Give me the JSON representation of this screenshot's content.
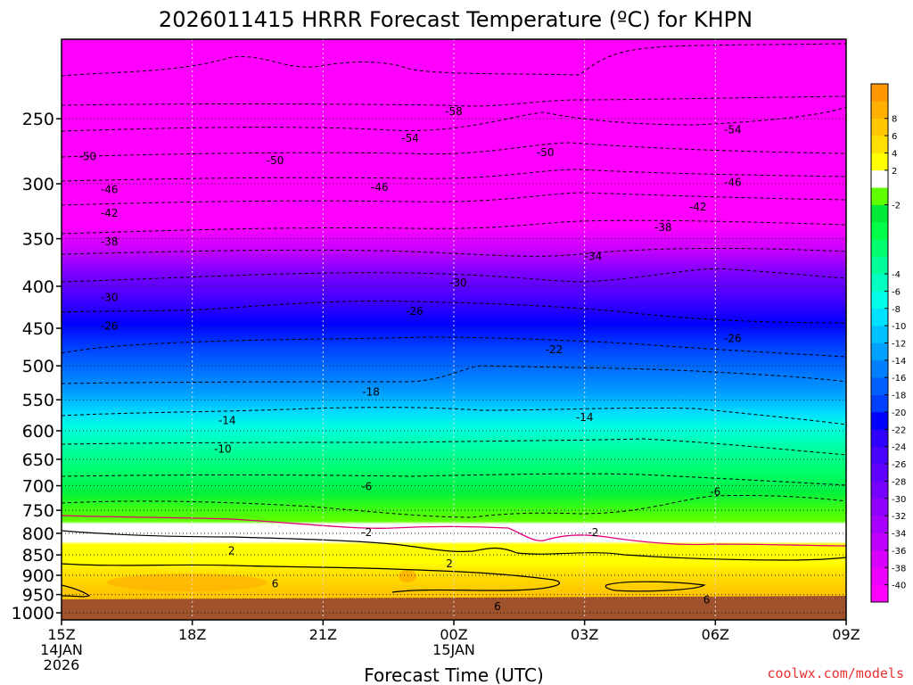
{
  "chart_data": {
    "type": "heatmap",
    "title": "2026011415 HRRR Forecast Temperature (ºC) for KHPN",
    "xlabel": "Forecast Time (UTC)",
    "ylabel": "",
    "credit": "coolwx.com/models",
    "x_ticks": [
      {
        "hour": 0,
        "lines": [
          "15Z",
          "14JAN",
          "2026"
        ]
      },
      {
        "hour": 3,
        "lines": [
          "18Z"
        ]
      },
      {
        "hour": 6,
        "lines": [
          "21Z"
        ]
      },
      {
        "hour": 9,
        "lines": [
          "00Z",
          "15JAN"
        ]
      },
      {
        "hour": 12,
        "lines": [
          "03Z"
        ]
      },
      {
        "hour": 15,
        "lines": [
          "06Z"
        ]
      },
      {
        "hour": 18,
        "lines": [
          "09Z"
        ]
      }
    ],
    "xlim_hours": [
      0,
      18
    ],
    "y_ticks": [
      250,
      300,
      350,
      400,
      450,
      500,
      550,
      600,
      650,
      700,
      750,
      800,
      850,
      900,
      950,
      1000
    ],
    "ylim_hpa": [
      200,
      1020
    ],
    "y_scale": "log (pressure)",
    "ground_color": "#a0522d",
    "contour_labels": [
      {
        "t": 0.6,
        "p": 278,
        "text": "-50"
      },
      {
        "t": 1.1,
        "p": 305,
        "text": "-46"
      },
      {
        "t": 1.1,
        "p": 326,
        "text": "-42"
      },
      {
        "t": 1.1,
        "p": 353,
        "text": "-38"
      },
      {
        "t": 1.1,
        "p": 413,
        "text": "-30"
      },
      {
        "t": 1.1,
        "p": 447,
        "text": "-26"
      },
      {
        "t": 4.9,
        "p": 281,
        "text": "-50"
      },
      {
        "t": 7.3,
        "p": 303,
        "text": "-46"
      },
      {
        "t": 9.0,
        "p": 245,
        "text": "-58"
      },
      {
        "t": 8.0,
        "p": 264,
        "text": "-54"
      },
      {
        "t": 11.1,
        "p": 275,
        "text": "-50"
      },
      {
        "t": 12.2,
        "p": 368,
        "text": "-34"
      },
      {
        "t": 13.8,
        "p": 339,
        "text": "-38"
      },
      {
        "t": 15.4,
        "p": 258,
        "text": "-54"
      },
      {
        "t": 15.4,
        "p": 299,
        "text": "-46"
      },
      {
        "t": 14.6,
        "p": 320,
        "text": "-42"
      },
      {
        "t": 9.1,
        "p": 396,
        "text": "-30"
      },
      {
        "t": 8.1,
        "p": 429,
        "text": "-26"
      },
      {
        "t": 11.3,
        "p": 478,
        "text": "-22"
      },
      {
        "t": 15.4,
        "p": 463,
        "text": "-26"
      },
      {
        "t": 7.1,
        "p": 538,
        "text": "-18"
      },
      {
        "t": 3.8,
        "p": 583,
        "text": "-14"
      },
      {
        "t": 12.0,
        "p": 578,
        "text": "-14"
      },
      {
        "t": 3.7,
        "p": 632,
        "text": "-10"
      },
      {
        "t": 7.0,
        "p": 702,
        "text": "-6"
      },
      {
        "t": 15.0,
        "p": 712,
        "text": "-6"
      },
      {
        "t": 7.0,
        "p": 798,
        "text": "-2"
      },
      {
        "t": 12.2,
        "p": 798,
        "text": "-2"
      },
      {
        "t": 3.9,
        "p": 840,
        "text": "2"
      },
      {
        "t": 8.9,
        "p": 871,
        "text": "2"
      },
      {
        "t": 4.9,
        "p": 922,
        "text": "6"
      },
      {
        "t": 10.0,
        "p": 982,
        "text": "6"
      },
      {
        "t": 14.8,
        "p": 964,
        "text": "6"
      }
    ],
    "colorbar": {
      "colors": [
        "#ff00ff",
        "#ee00ff",
        "#d800ff",
        "#c000ff",
        "#a800ff",
        "#9000ff",
        "#7800ff",
        "#6000ff",
        "#4800ff",
        "#3000ff",
        "#0000ff",
        "#0040ff",
        "#0060ff",
        "#0080ff",
        "#00a0ff",
        "#00c0ff",
        "#00e0ff",
        "#00ffe8",
        "#00ffc0",
        "#00ff98",
        "#00ff70",
        "#00ff48",
        "#00e838",
        "#60ff00",
        "#ffffff",
        "#ffff00",
        "#ffe000",
        "#ffc800",
        "#ffb000",
        "#ff9800"
      ],
      "labels": [
        {
          "after": 0,
          "text": "-40"
        },
        {
          "after": 1,
          "text": "-38"
        },
        {
          "after": 2,
          "text": "-36"
        },
        {
          "after": 3,
          "text": "-34"
        },
        {
          "after": 4,
          "text": "-32"
        },
        {
          "after": 5,
          "text": "-30"
        },
        {
          "after": 6,
          "text": "-28"
        },
        {
          "after": 7,
          "text": "-26"
        },
        {
          "after": 8,
          "text": "-24"
        },
        {
          "after": 9,
          "text": "-22"
        },
        {
          "after": 10,
          "text": "-20"
        },
        {
          "after": 11,
          "text": "-18"
        },
        {
          "after": 12,
          "text": "-16"
        },
        {
          "after": 13,
          "text": "-14"
        },
        {
          "after": 14,
          "text": "-12"
        },
        {
          "after": 15,
          "text": "-10"
        },
        {
          "after": 16,
          "text": "-8"
        },
        {
          "after": 17,
          "text": "-6"
        },
        {
          "after": 18,
          "text": "-4"
        },
        {
          "after": 22,
          "text": "-2"
        },
        {
          "after": 24,
          "text": "2"
        },
        {
          "after": 25,
          "text": "4"
        },
        {
          "after": 26,
          "text": "6"
        },
        {
          "after": 27,
          "text": "8"
        }
      ]
    }
  }
}
